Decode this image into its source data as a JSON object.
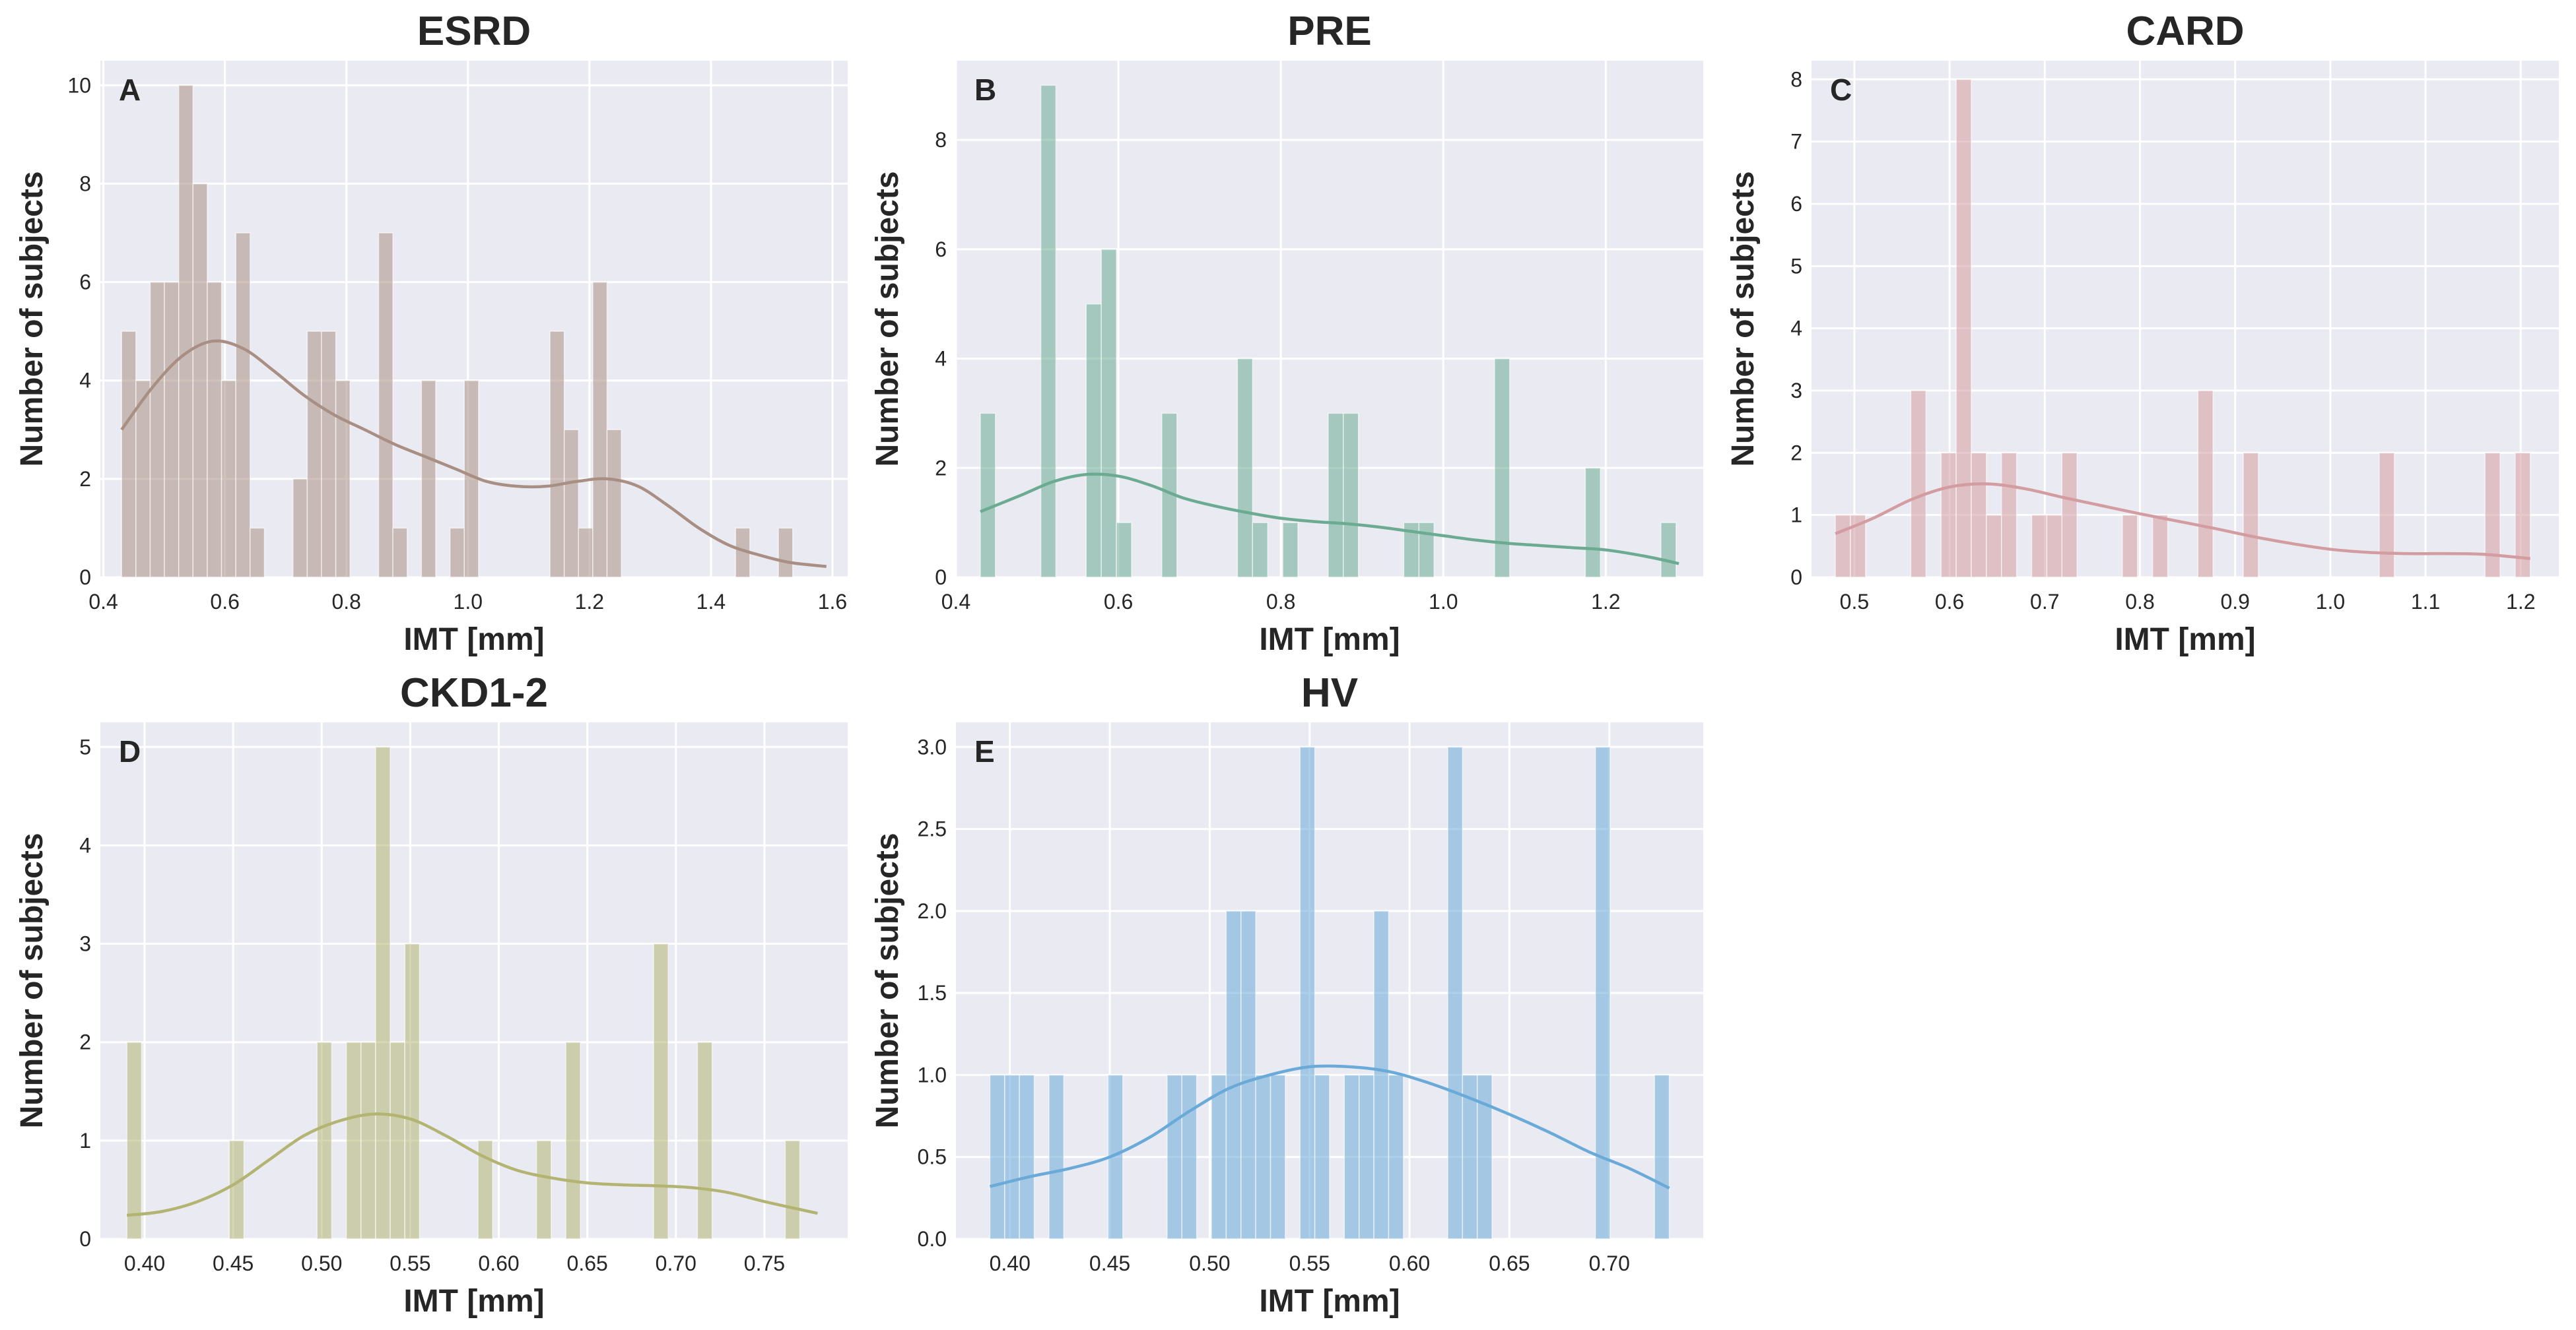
{
  "figure": {
    "ylabel": "Number of subjects",
    "xlabel": "IMT [mm]"
  },
  "chart_data": [
    {
      "type": "histogram",
      "panel": "A",
      "title": "ESRD",
      "xlabel": "IMT [mm]",
      "ylabel": "Number of subjects",
      "color": "#a98f83",
      "xlim": [
        0.395,
        1.625
      ],
      "ylim": [
        0,
        10.5
      ],
      "xticks": [
        0.4,
        0.6,
        0.8,
        1.0,
        1.2,
        1.4,
        1.6
      ],
      "xtick_labels": [
        "0.4",
        "0.6",
        "0.8",
        "1.0",
        "1.2",
        "1.4",
        "1.6"
      ],
      "yticks": [
        0,
        2,
        4,
        6,
        8,
        10
      ],
      "ytick_labels": [
        "0",
        "2",
        "4",
        "6",
        "8",
        "10"
      ],
      "bin_start": 0.43,
      "bin_width": 0.0235,
      "counts": [
        5,
        4,
        6,
        6,
        10,
        8,
        6,
        4,
        7,
        1,
        0,
        0,
        2,
        5,
        5,
        4,
        0,
        0,
        7,
        1,
        0,
        4,
        0,
        1,
        4,
        0,
        0,
        0,
        0,
        0,
        5,
        3,
        1,
        6,
        3,
        0,
        0,
        0,
        0,
        0,
        0,
        0,
        0,
        1,
        0,
        0,
        1
      ],
      "kde": [
        [
          0.43,
          3.0
        ],
        [
          0.48,
          3.85
        ],
        [
          0.53,
          4.5
        ],
        [
          0.58,
          4.8
        ],
        [
          0.63,
          4.65
        ],
        [
          0.68,
          4.2
        ],
        [
          0.73,
          3.7
        ],
        [
          0.78,
          3.3
        ],
        [
          0.83,
          3.0
        ],
        [
          0.88,
          2.7
        ],
        [
          0.93,
          2.45
        ],
        [
          0.98,
          2.2
        ],
        [
          1.03,
          1.95
        ],
        [
          1.08,
          1.85
        ],
        [
          1.13,
          1.85
        ],
        [
          1.18,
          1.95
        ],
        [
          1.23,
          2.0
        ],
        [
          1.28,
          1.85
        ],
        [
          1.33,
          1.45
        ],
        [
          1.38,
          1.0
        ],
        [
          1.43,
          0.65
        ],
        [
          1.48,
          0.45
        ],
        [
          1.53,
          0.3
        ],
        [
          1.59,
          0.22
        ]
      ]
    },
    {
      "type": "histogram",
      "panel": "B",
      "title": "PRE",
      "xlabel": "IMT [mm]",
      "ylabel": "Number of subjects",
      "color": "#6aab91",
      "xlim": [
        0.4,
        1.32
      ],
      "ylim": [
        0,
        9.45
      ],
      "xticks": [
        0.4,
        0.6,
        0.8,
        1.0,
        1.2
      ],
      "xtick_labels": [
        "0.4",
        "0.6",
        "0.8",
        "1.0",
        "1.2"
      ],
      "yticks": [
        0,
        2,
        4,
        6,
        8
      ],
      "ytick_labels": [
        "0",
        "2",
        "4",
        "6",
        "8"
      ],
      "bin_start": 0.43,
      "bin_width": 0.01862,
      "counts": [
        3,
        0,
        0,
        0,
        9,
        0,
        0,
        5,
        6,
        1,
        0,
        0,
        3,
        0,
        0,
        0,
        0,
        4,
        1,
        0,
        1,
        0,
        0,
        3,
        3,
        0,
        0,
        0,
        1,
        1,
        0,
        0,
        0,
        0,
        4,
        0,
        0,
        0,
        0,
        0,
        2,
        0,
        0,
        0,
        0,
        1
      ],
      "kde": [
        [
          0.43,
          1.2
        ],
        [
          0.48,
          1.5
        ],
        [
          0.52,
          1.75
        ],
        [
          0.56,
          1.88
        ],
        [
          0.6,
          1.85
        ],
        [
          0.64,
          1.68
        ],
        [
          0.68,
          1.45
        ],
        [
          0.72,
          1.3
        ],
        [
          0.76,
          1.18
        ],
        [
          0.8,
          1.08
        ],
        [
          0.84,
          1.02
        ],
        [
          0.88,
          0.98
        ],
        [
          0.92,
          0.92
        ],
        [
          0.96,
          0.84
        ],
        [
          1.0,
          0.76
        ],
        [
          1.04,
          0.68
        ],
        [
          1.08,
          0.62
        ],
        [
          1.12,
          0.58
        ],
        [
          1.16,
          0.54
        ],
        [
          1.2,
          0.5
        ],
        [
          1.25,
          0.38
        ],
        [
          1.29,
          0.25
        ]
      ]
    },
    {
      "type": "histogram",
      "panel": "C",
      "title": "CARD",
      "xlabel": "IMT [mm]",
      "ylabel": "Number of subjects",
      "color": "#d39ca0",
      "xlim": [
        0.455,
        1.24
      ],
      "ylim": [
        0,
        8.3
      ],
      "xticks": [
        0.5,
        0.6,
        0.7,
        0.8,
        0.9,
        1.0,
        1.1,
        1.2
      ],
      "xtick_labels": [
        "0.5",
        "0.6",
        "0.7",
        "0.8",
        "0.9",
        "1.0",
        "1.1",
        "1.2"
      ],
      "yticks": [
        0,
        1,
        2,
        3,
        4,
        5,
        6,
        7,
        8
      ],
      "ytick_labels": [
        "0",
        "1",
        "2",
        "3",
        "4",
        "5",
        "6",
        "7",
        "8"
      ],
      "bin_start": 0.48,
      "bin_width": 0.01587,
      "counts": [
        1,
        1,
        0,
        0,
        0,
        3,
        0,
        2,
        8,
        2,
        1,
        2,
        0,
        1,
        1,
        2,
        0,
        0,
        0,
        1,
        0,
        1,
        0,
        0,
        3,
        0,
        0,
        2,
        0,
        0,
        0,
        0,
        0,
        0,
        0,
        0,
        2,
        0,
        0,
        0,
        0,
        0,
        0,
        2,
        0,
        2
      ],
      "kde": [
        [
          0.48,
          0.7
        ],
        [
          0.52,
          0.95
        ],
        [
          0.56,
          1.25
        ],
        [
          0.6,
          1.45
        ],
        [
          0.64,
          1.5
        ],
        [
          0.68,
          1.42
        ],
        [
          0.72,
          1.28
        ],
        [
          0.76,
          1.15
        ],
        [
          0.8,
          1.02
        ],
        [
          0.84,
          0.9
        ],
        [
          0.88,
          0.78
        ],
        [
          0.92,
          0.65
        ],
        [
          0.96,
          0.54
        ],
        [
          1.0,
          0.45
        ],
        [
          1.04,
          0.4
        ],
        [
          1.08,
          0.38
        ],
        [
          1.12,
          0.38
        ],
        [
          1.16,
          0.37
        ],
        [
          1.21,
          0.3
        ]
      ]
    },
    {
      "type": "histogram",
      "panel": "D",
      "title": "CKD1-2",
      "xlabel": "IMT [mm]",
      "ylabel": "Number of subjects",
      "color": "#b3b472",
      "xlim": [
        0.375,
        0.797
      ],
      "ylim": [
        0,
        5.25
      ],
      "xticks": [
        0.4,
        0.45,
        0.5,
        0.55,
        0.6,
        0.65,
        0.7,
        0.75
      ],
      "xtick_labels": [
        "0.40",
        "0.45",
        "0.50",
        "0.55",
        "0.60",
        "0.65",
        "0.70",
        "0.75"
      ],
      "yticks": [
        0,
        1,
        2,
        3,
        4,
        5
      ],
      "ytick_labels": [
        "0",
        "1",
        "2",
        "3",
        "4",
        "5"
      ],
      "bin_start": 0.39,
      "bin_width": 0.008261,
      "counts": [
        2,
        0,
        0,
        0,
        0,
        0,
        0,
        1,
        0,
        0,
        0,
        0,
        0,
        2,
        0,
        2,
        2,
        5,
        2,
        3,
        0,
        0,
        0,
        0,
        1,
        0,
        0,
        0,
        1,
        0,
        2,
        0,
        0,
        0,
        0,
        0,
        3,
        0,
        0,
        2,
        0,
        0,
        0,
        0,
        0,
        1
      ],
      "kde": [
        [
          0.39,
          0.24
        ],
        [
          0.41,
          0.28
        ],
        [
          0.43,
          0.38
        ],
        [
          0.45,
          0.55
        ],
        [
          0.47,
          0.8
        ],
        [
          0.49,
          1.05
        ],
        [
          0.51,
          1.2
        ],
        [
          0.53,
          1.27
        ],
        [
          0.55,
          1.22
        ],
        [
          0.57,
          1.05
        ],
        [
          0.59,
          0.85
        ],
        [
          0.61,
          0.7
        ],
        [
          0.63,
          0.62
        ],
        [
          0.65,
          0.57
        ],
        [
          0.67,
          0.55
        ],
        [
          0.69,
          0.54
        ],
        [
          0.71,
          0.52
        ],
        [
          0.73,
          0.47
        ],
        [
          0.75,
          0.38
        ],
        [
          0.77,
          0.3
        ],
        [
          0.78,
          0.26
        ]
      ]
    },
    {
      "type": "histogram",
      "panel": "E",
      "title": "HV",
      "xlabel": "IMT [mm]",
      "ylabel": "Number of subjects",
      "color": "#6aaad8",
      "xlim": [
        0.373,
        0.747
      ],
      "ylim": [
        0,
        3.15
      ],
      "xticks": [
        0.4,
        0.45,
        0.5,
        0.55,
        0.6,
        0.65,
        0.7
      ],
      "xtick_labels": [
        "0.40",
        "0.45",
        "0.50",
        "0.55",
        "0.60",
        "0.65",
        "0.70"
      ],
      "yticks": [
        0,
        0.5,
        1.0,
        1.5,
        2.0,
        2.5,
        3.0
      ],
      "ytick_labels": [
        "0.0",
        "0.5",
        "1.0",
        "1.5",
        "2.0",
        "2.5",
        "3.0"
      ],
      "bin_start": 0.39,
      "bin_width": 0.007391,
      "counts": [
        1,
        1,
        1,
        0,
        1,
        0,
        0,
        0,
        1,
        0,
        0,
        0,
        1,
        1,
        0,
        1,
        2,
        2,
        1,
        1,
        0,
        3,
        1,
        0,
        1,
        1,
        2,
        1,
        0,
        0,
        0,
        3,
        1,
        1,
        0,
        0,
        0,
        0,
        0,
        0,
        0,
        3,
        0,
        0,
        0,
        1
      ],
      "kde": [
        [
          0.39,
          0.32
        ],
        [
          0.41,
          0.38
        ],
        [
          0.43,
          0.43
        ],
        [
          0.45,
          0.5
        ],
        [
          0.47,
          0.62
        ],
        [
          0.49,
          0.78
        ],
        [
          0.51,
          0.92
        ],
        [
          0.53,
          1.0
        ],
        [
          0.55,
          1.05
        ],
        [
          0.57,
          1.05
        ],
        [
          0.59,
          1.02
        ],
        [
          0.61,
          0.95
        ],
        [
          0.63,
          0.86
        ],
        [
          0.65,
          0.76
        ],
        [
          0.67,
          0.65
        ],
        [
          0.69,
          0.53
        ],
        [
          0.71,
          0.43
        ],
        [
          0.73,
          0.31
        ]
      ]
    }
  ]
}
